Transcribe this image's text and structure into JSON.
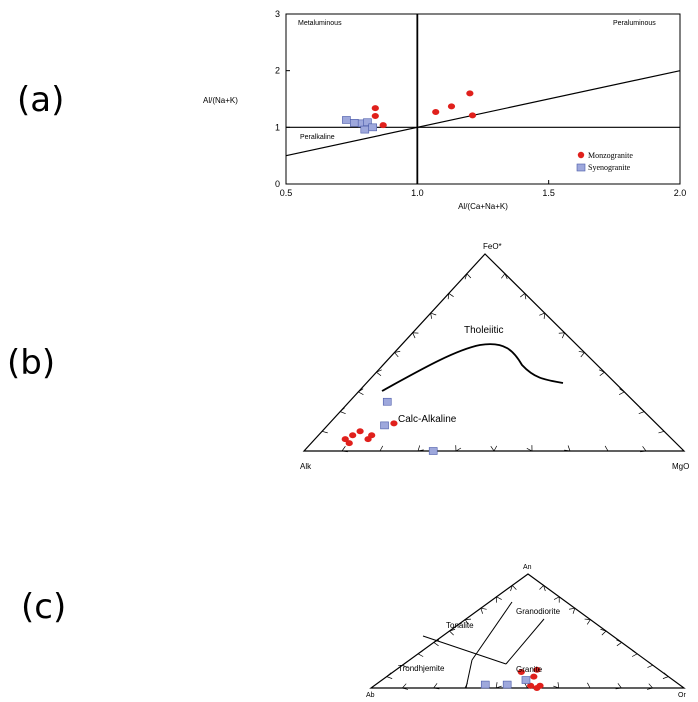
{
  "panels": {
    "a": "(a)",
    "b": "(b)",
    "c": "(c)"
  },
  "colors": {
    "monzogranite": "#e0201c",
    "syenogranite": "#9ea8dc",
    "syenogranite_stroke": "#4a5aa8",
    "line": "#000000"
  },
  "chart_data": [
    {
      "id": "a",
      "type": "scatter",
      "xlabel": "Al/(Ca+Na+K)",
      "ylabel": "Al/(Na+K)",
      "xlim": [
        0.5,
        2.0
      ],
      "ylim": [
        0,
        3
      ],
      "xticks": [
        "0.5",
        "1.0",
        "1.5",
        "2.0"
      ],
      "yticks": [
        "0",
        "1",
        "2",
        "3"
      ],
      "regions": {
        "metaluminous": "Metaluminous",
        "peraluminous": "Peraluminous",
        "peralkaline": "Peralkaline"
      },
      "legend_position": "bottom-right",
      "series": [
        {
          "name": "Monzogranite",
          "marker": "circle",
          "points": [
            [
              0.84,
              1.34
            ],
            [
              0.84,
              1.2
            ],
            [
              0.87,
              1.04
            ],
            [
              1.07,
              1.27
            ],
            [
              1.13,
              1.37
            ],
            [
              1.2,
              1.6
            ],
            [
              1.21,
              1.21
            ]
          ]
        },
        {
          "name": "Syenogranite",
          "marker": "square",
          "points": [
            [
              0.73,
              1.13
            ],
            [
              0.76,
              1.08
            ],
            [
              0.79,
              1.07
            ],
            [
              0.8,
              0.96
            ],
            [
              0.81,
              1.09
            ],
            [
              0.83,
              1.0
            ]
          ]
        }
      ],
      "lines": [
        {
          "from": [
            0.5,
            0.5
          ],
          "to": [
            2.0,
            2.0
          ]
        },
        {
          "from": [
            0.5,
            1.0
          ],
          "to": [
            2.0,
            1.0
          ]
        },
        {
          "from": [
            1.0,
            0
          ],
          "to": [
            1.0,
            3.0
          ]
        }
      ]
    },
    {
      "id": "b",
      "type": "scatter",
      "diagram": "ternary AFM",
      "vertices": {
        "top": "FeO*",
        "left": "Alk",
        "right": "MgO"
      },
      "fields": {
        "upper": "Tholeiitic",
        "lower": "Calc-Alkaline"
      },
      "series": [
        {
          "name": "Monzogranite",
          "marker": "circle",
          "points": [
            [
              0.1,
              0.1,
              0.8
            ],
            [
              0.08,
              0.09,
              0.83
            ],
            [
              0.06,
              0.08,
              0.86
            ],
            [
              0.14,
              0.17,
              0.69
            ],
            [
              0.08,
              0.14,
              0.78
            ],
            [
              0.06,
              0.14,
              0.8
            ],
            [
              0.04,
              0.1,
              0.86
            ]
          ]
        },
        {
          "name": "Syenogranite",
          "marker": "square",
          "points": [
            [
              0.25,
              0.1,
              0.65
            ],
            [
              0.13,
              0.15,
              0.72
            ],
            [
              0.0,
              0.34,
              0.66
            ]
          ]
        }
      ]
    },
    {
      "id": "c",
      "type": "scatter",
      "diagram": "ternary An-Ab-Or",
      "vertices": {
        "top": "An",
        "left": "Ab",
        "right": "Or"
      },
      "fields": {
        "tonalite": "Tonalite",
        "granodiorite": "Granodiorite",
        "trondhjemite": "Trondhjemite",
        "granite": "Granite"
      },
      "series": [
        {
          "name": "Monzogranite",
          "marker": "circle",
          "points": [
            [
              0.16,
              0.39,
              0.45
            ],
            [
              0.14,
              0.45,
              0.41
            ],
            [
              0.1,
              0.43,
              0.47
            ],
            [
              0.02,
              0.48,
              0.5
            ],
            [
              0.02,
              0.45,
              0.53
            ],
            [
              0.0,
              0.47,
              0.53
            ]
          ]
        },
        {
          "name": "Syenogranite",
          "marker": "square",
          "points": [
            [
              0.03,
              0.62,
              0.35
            ],
            [
              0.03,
              0.55,
              0.42
            ],
            [
              0.07,
              0.47,
              0.46
            ]
          ]
        }
      ]
    }
  ]
}
